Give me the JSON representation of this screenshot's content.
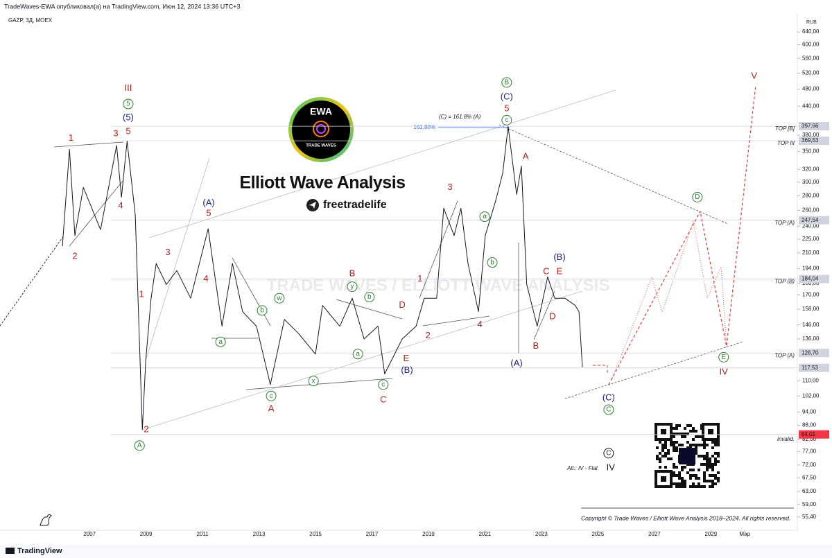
{
  "header": {
    "published": "TradeWaves-EWA опубликовал(а) на TradingView.com, Июн 12, 2024 13:36 UTC+3",
    "footer": "TradingView"
  },
  "overlay": {
    "logo_title": "EWA",
    "logo_subtitle": "TRADE WAVES",
    "title": "Elliott Wave Analysis",
    "handle": "freetradelife",
    "watermark": "TRADE WAVES / ELLIOTT WAVE ANALYSIS",
    "fib_note": "(C) = 161.8% (A)",
    "fib_level": "161,80%",
    "copyright": "Copyright © Trade Waves / Elliott Wave Analysis 2018–2024. All rights reserved."
  },
  "chart_data": {
    "type": "line",
    "symbol": "GAZP, 3Д, MOEX",
    "currency": "RUB",
    "log_scale": true,
    "grid": false,
    "xlim": [
      2003.83,
      2032.06
    ],
    "xticks": [
      2007,
      2009,
      2011,
      2013,
      2015,
      2017,
      2019,
      2021,
      2023,
      2025,
      2027,
      2029,
      {
        "value": 2030.2,
        "label": "Мар"
      }
    ],
    "ylim": [
      51.8,
      701
    ],
    "yticks": [
      {
        "value": 640,
        "label": "640,00"
      },
      {
        "value": 600,
        "label": "600,00"
      },
      {
        "value": 560,
        "label": "560,00"
      },
      {
        "value": 520,
        "label": "520,00"
      },
      {
        "value": 480,
        "label": "480,00"
      },
      {
        "value": 440,
        "label": "440,00"
      },
      {
        "value": 380,
        "label": "380,00"
      },
      {
        "value": 350,
        "label": "350,00"
      },
      {
        "value": 320,
        "label": "320,00"
      },
      {
        "value": 300,
        "label": "300,00"
      },
      {
        "value": 280,
        "label": "280,00"
      },
      {
        "value": 260,
        "label": "260,00"
      },
      {
        "value": 240,
        "label": "240,00"
      },
      {
        "value": 225,
        "label": "225,00"
      },
      {
        "value": 210,
        "label": "210,00"
      },
      {
        "value": 194,
        "label": "194,00"
      },
      {
        "value": 180,
        "label": "180,00"
      },
      {
        "value": 170,
        "label": "170,00"
      },
      {
        "value": 158,
        "label": "158,00"
      },
      {
        "value": 146,
        "label": "146,00"
      },
      {
        "value": 136,
        "label": "136,00"
      },
      {
        "value": 110,
        "label": "110,00"
      },
      {
        "value": 102,
        "label": "102,00"
      },
      {
        "value": 94,
        "label": "94,00"
      },
      {
        "value": 88,
        "label": "88,00"
      },
      {
        "value": 82,
        "label": "82,00"
      },
      {
        "value": 77,
        "label": "77,00"
      },
      {
        "value": 72,
        "label": "72,00"
      },
      {
        "value": 67.5,
        "label": "67,50"
      },
      {
        "value": 63,
        "label": "63,00"
      },
      {
        "value": 59,
        "label": "59,00"
      },
      {
        "value": 55.4,
        "label": "55,40"
      }
    ],
    "series": [
      {
        "color": "#131722",
        "x": [
          2006.04,
          2006.29,
          2006.48,
          2006.78,
          2007.39,
          2007.96,
          2008.13,
          2008.33,
          2008.62,
          2008.87,
          2008.99,
          2009.18,
          2009.36,
          2009.72,
          2010.09,
          2010.58,
          2011.2,
          2011.69,
          2012.06,
          2012.42,
          2012.91,
          2013.4,
          2013.9,
          2014.39,
          2015.0,
          2015.25,
          2015.86,
          2016.3,
          2016.72,
          2017.21,
          2017.45,
          2018.07,
          2018.56,
          2018.85,
          2019.29,
          2019.54,
          2019.91,
          2020.15,
          2020.4,
          2020.77,
          2021.01,
          2021.38,
          2021.63,
          2021.82,
          2022.12,
          2022.29,
          2022.48,
          2022.85,
          2023.22,
          2023.47,
          2023.83,
          2024.2,
          2024.33,
          2024.45
        ],
        "values": [
          217,
          354,
          229,
          292,
          236,
          361,
          278,
          369,
          254,
          86,
          122,
          167,
          199,
          179,
          192,
          167,
          237,
          145,
          199,
          156,
          145,
          108,
          150,
          140,
          126,
          161,
          145,
          167,
          136,
          145,
          114,
          136,
          145,
          167,
          167,
          263,
          229,
          263,
          199,
          156,
          229,
          273,
          314,
          397,
          282,
          325,
          179,
          145,
          186,
          167,
          167,
          161,
          156,
          118
        ]
      },
      {
        "color": "#e53935",
        "dashed": true,
        "x": [
          2025.38,
          2028.62,
          2029.55,
          2030.58
        ],
        "values": [
          108,
          259,
          131,
          486
        ]
      }
    ],
    "levels": [
      {
        "value": 397.66,
        "label": "397,66",
        "text": "TOP [B]"
      },
      {
        "value": 369.53,
        "label": "369,53",
        "text": "TOP III"
      },
      {
        "value": 247.54,
        "label": "247,54",
        "text": "TOP (A)"
      },
      {
        "value": 184.04,
        "label": "184,04",
        "text": "TOP (B)"
      },
      {
        "value": 126.7,
        "label": "126,70",
        "text": "TOP (A)"
      },
      {
        "value": 117.53,
        "label": "117,53"
      },
      {
        "value": 84.01,
        "label": "84,01",
        "text": "invalid.",
        "color": "#f23645"
      }
    ],
    "annotations": [
      {
        "text": "III",
        "x": 2008.37,
        "y": 481,
        "color": "#b71c1c"
      },
      {
        "text": "5",
        "x": 2008.37,
        "y": 445,
        "color": "#2e7d32",
        "circled": true
      },
      {
        "text": "(5)",
        "x": 2008.37,
        "y": 415,
        "color": "#1a237e"
      },
      {
        "text": "5",
        "x": 2008.37,
        "y": 387,
        "color": "#b71c1c"
      },
      {
        "text": "1",
        "x": 2006.34,
        "y": 374,
        "color": "#b71c1c"
      },
      {
        "text": "3",
        "x": 2007.93,
        "y": 383,
        "color": "#b71c1c"
      },
      {
        "text": "4",
        "x": 2008.1,
        "y": 266,
        "color": "#b71c1c"
      },
      {
        "text": "2",
        "x": 2006.48,
        "y": 206,
        "color": "#b71c1c"
      },
      {
        "text": "2",
        "x": 2009.01,
        "y": 86,
        "color": "#b71c1c"
      },
      {
        "text": "A",
        "x": 2008.77,
        "y": 79.4,
        "color": "#2e7d32",
        "circled": true
      },
      {
        "text": "1",
        "x": 2008.84,
        "y": 170,
        "color": "#b71c1c"
      },
      {
        "text": "3",
        "x": 2009.77,
        "y": 210,
        "color": "#b71c1c"
      },
      {
        "text": "4",
        "x": 2011.12,
        "y": 184,
        "color": "#b71c1c"
      },
      {
        "text": "(A)",
        "x": 2011.22,
        "y": 270,
        "color": "#1a237e"
      },
      {
        "text": "5",
        "x": 2011.22,
        "y": 256,
        "color": "#b71c1c"
      },
      {
        "text": "a",
        "x": 2011.64,
        "y": 134,
        "color": "#2e7d32",
        "circled": true
      },
      {
        "text": "b",
        "x": 2013.11,
        "y": 157,
        "color": "#2e7d32",
        "circled": true
      },
      {
        "text": "w",
        "x": 2013.72,
        "y": 167,
        "color": "#2e7d32",
        "circled": true
      },
      {
        "text": "c",
        "x": 2013.43,
        "y": 102,
        "color": "#2e7d32",
        "circled": true
      },
      {
        "text": "A",
        "x": 2013.43,
        "y": 95.5,
        "color": "#b71c1c"
      },
      {
        "text": "x",
        "x": 2014.93,
        "y": 110,
        "color": "#2e7d32",
        "circled": true
      },
      {
        "text": "B",
        "x": 2016.3,
        "y": 189,
        "color": "#b71c1c"
      },
      {
        "text": "y",
        "x": 2016.3,
        "y": 177,
        "color": "#2e7d32",
        "circled": true
      },
      {
        "text": "b",
        "x": 2016.91,
        "y": 168,
        "color": "#2e7d32",
        "circled": true
      },
      {
        "text": "a",
        "x": 2016.5,
        "y": 126,
        "color": "#2e7d32",
        "circled": true
      },
      {
        "text": "c",
        "x": 2017.4,
        "y": 108,
        "color": "#2e7d32",
        "circled": true
      },
      {
        "text": "C",
        "x": 2017.4,
        "y": 100,
        "color": "#b71c1c"
      },
      {
        "text": "D",
        "x": 2018.07,
        "y": 161,
        "color": "#b71c1c"
      },
      {
        "text": "E",
        "x": 2018.21,
        "y": 123,
        "color": "#b71c1c"
      },
      {
        "text": "(B)",
        "x": 2018.24,
        "y": 116,
        "color": "#1a237e"
      },
      {
        "text": "1",
        "x": 2018.7,
        "y": 184,
        "color": "#b71c1c"
      },
      {
        "text": "2",
        "x": 2018.98,
        "y": 138,
        "color": "#b71c1c"
      },
      {
        "text": "3",
        "x": 2019.76,
        "y": 292,
        "color": "#b71c1c"
      },
      {
        "text": "4",
        "x": 2020.82,
        "y": 146,
        "color": "#b71c1c"
      },
      {
        "text": "a",
        "x": 2020.99,
        "y": 252,
        "color": "#2e7d32",
        "circled": true
      },
      {
        "text": "b",
        "x": 2021.26,
        "y": 200,
        "color": "#2e7d32",
        "circled": true
      },
      {
        "text": "B",
        "x": 2021.77,
        "y": 496,
        "color": "#2e7d32",
        "circled": true
      },
      {
        "text": "(C)",
        "x": 2021.77,
        "y": 461,
        "color": "#1a237e"
      },
      {
        "text": "5",
        "x": 2021.77,
        "y": 434,
        "color": "#b71c1c"
      },
      {
        "text": "c",
        "x": 2021.77,
        "y": 410,
        "color": "#2e7d32",
        "circled": true
      },
      {
        "text": "A",
        "x": 2022.44,
        "y": 341,
        "color": "#b71c1c"
      },
      {
        "text": "C",
        "x": 2023.17,
        "y": 191,
        "color": "#b71c1c"
      },
      {
        "text": "E",
        "x": 2023.64,
        "y": 191,
        "color": "#b71c1c"
      },
      {
        "text": "(B)",
        "x": 2023.64,
        "y": 205,
        "color": "#1a237e"
      },
      {
        "text": "D",
        "x": 2023.39,
        "y": 152,
        "color": "#b71c1c"
      },
      {
        "text": "B",
        "x": 2022.8,
        "y": 131,
        "color": "#b71c1c"
      },
      {
        "text": "(A)",
        "x": 2022.12,
        "y": 120,
        "color": "#1a237e"
      },
      {
        "text": "D",
        "x": 2028.52,
        "y": 278,
        "color": "#2e7d32",
        "circled": true
      },
      {
        "text": "E",
        "x": 2029.45,
        "y": 124,
        "color": "#2e7d32",
        "circled": true
      },
      {
        "text": "IV",
        "x": 2029.45,
        "y": 115,
        "color": "#b71c1c"
      },
      {
        "text": "V",
        "x": 2030.53,
        "y": 512,
        "color": "#b71c1c"
      },
      {
        "text": "(C)",
        "x": 2025.38,
        "y": 101,
        "color": "#1a237e"
      },
      {
        "text": "C",
        "x": 2025.38,
        "y": 95.2,
        "color": "#2e7d32",
        "circled": true
      },
      {
        "text": "C",
        "x": 2025.38,
        "y": 76.4,
        "color": "#131722",
        "circled": true
      },
      {
        "text": "IV",
        "x": 2025.45,
        "y": 71,
        "color": "#131722"
      },
      {
        "text": "Alt.: IV - Flat",
        "x": 2024.45,
        "y": 70.7,
        "color": "#131722",
        "small": true
      }
    ]
  }
}
